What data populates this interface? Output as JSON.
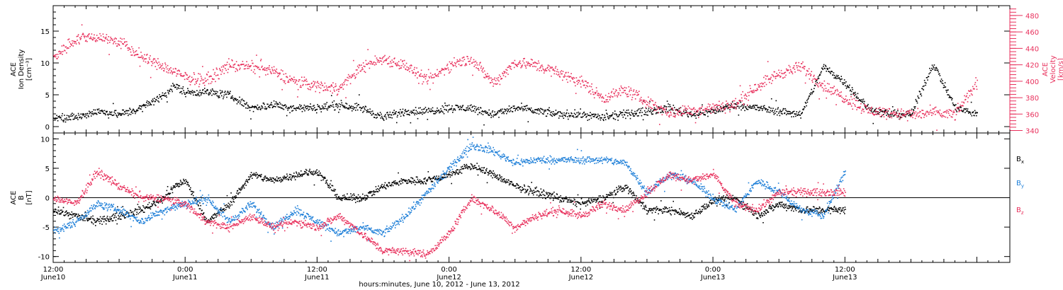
{
  "colors": {
    "black": "#000000",
    "velocity": "#e8305c",
    "by": "#1e7fd8",
    "bz": "#e8305c"
  },
  "chart_data": [
    {
      "type": "scatter",
      "ylabel_lines": [
        "ACE",
        "Ion Density",
        "[cm⁻³]"
      ],
      "ylim": [
        -1,
        19
      ],
      "yticks": [
        0,
        5,
        10,
        15
      ],
      "y2label_lines": [
        "ACE",
        "Velocity",
        "[km/s]"
      ],
      "y2lim": [
        337,
        492
      ],
      "y2ticks": [
        340,
        360,
        380,
        400,
        420,
        440,
        460,
        480
      ],
      "xlim": [
        0,
        87
      ],
      "series": [
        {
          "axis": "left",
          "color": "#000000",
          "x": [
            0,
            2,
            4,
            6,
            8,
            10,
            11,
            12,
            14,
            16,
            18,
            20,
            22,
            24,
            26,
            28,
            30,
            32,
            34,
            36,
            38,
            40,
            42,
            44,
            46,
            48,
            50,
            52,
            54,
            56,
            58,
            60,
            62,
            64,
            66,
            68,
            70,
            72,
            74,
            76,
            78,
            80,
            82,
            84
          ],
          "y": [
            1.5,
            1.5,
            2.5,
            2.0,
            3.0,
            5.0,
            6.5,
            5.5,
            5.5,
            5.0,
            3.0,
            3.5,
            3.0,
            3.0,
            3.5,
            3.0,
            1.5,
            2.5,
            2.5,
            3.0,
            3.0,
            2.0,
            3.0,
            2.5,
            2.0,
            2.0,
            1.5,
            2.0,
            2.5,
            3.0,
            2.0,
            2.5,
            3.5,
            3.0,
            2.5,
            2.0,
            9.5,
            7.0,
            3.0,
            2.0,
            2.0,
            10.0,
            3.0,
            2.0
          ]
        },
        {
          "axis": "right",
          "color": "#e8305c",
          "x": [
            0,
            2,
            4,
            6,
            8,
            10,
            12,
            14,
            16,
            18,
            20,
            22,
            24,
            26,
            28,
            30,
            32,
            34,
            36,
            38,
            40,
            42,
            44,
            46,
            48,
            50,
            52,
            54,
            56,
            58,
            60,
            62,
            64,
            66,
            68,
            70,
            72,
            74,
            76,
            78,
            80,
            82,
            84
          ],
          "y": [
            430,
            452,
            455,
            448,
            430,
            418,
            405,
            402,
            420,
            418,
            412,
            400,
            395,
            392,
            418,
            428,
            420,
            400,
            420,
            428,
            398,
            424,
            420,
            410,
            400,
            380,
            390,
            375,
            362,
            365,
            368,
            372,
            395,
            410,
            418,
            395,
            380,
            365,
            362,
            360,
            362,
            360,
            400
          ]
        }
      ]
    },
    {
      "type": "scatter",
      "ylabel_lines": [
        "ACE",
        "B",
        "[nT]"
      ],
      "ylim": [
        -11,
        11
      ],
      "yticks": [
        -10,
        -5,
        0,
        5,
        10
      ],
      "xlim": [
        0,
        87
      ],
      "xtick_labels": [
        {
          "x": 0,
          "time": "12:00",
          "date": "June10"
        },
        {
          "x": 12,
          "time": "0:00",
          "date": "June11"
        },
        {
          "x": 24,
          "time": "12:00",
          "date": "June11"
        },
        {
          "x": 36,
          "time": "0:00",
          "date": "June12"
        },
        {
          "x": 48,
          "time": "12:00",
          "date": "June12"
        },
        {
          "x": 60,
          "time": "0:00",
          "date": "June13"
        },
        {
          "x": 72,
          "time": "12:00",
          "date": "June13"
        }
      ],
      "xlabel": "hours:minutes, June 10, 2012 - June 13, 2012",
      "zero_line": true,
      "legend": [
        {
          "label": "B",
          "sub": "x",
          "color": "#000000"
        },
        {
          "label": "B",
          "sub": "y",
          "color": "#1e7fd8"
        },
        {
          "label": "B",
          "sub": "z",
          "color": "#e8305c"
        }
      ],
      "series": [
        {
          "name": "Bx",
          "color": "#000000",
          "x": [
            0,
            2,
            4,
            6,
            8,
            10,
            11,
            12,
            14,
            16,
            18,
            20,
            22,
            24,
            26,
            28,
            30,
            32,
            34,
            36,
            38,
            40,
            42,
            44,
            46,
            48,
            50,
            52,
            54,
            56,
            58,
            60,
            62,
            64,
            66,
            68,
            70,
            72
          ],
          "y": [
            -2,
            -3,
            -4,
            -3,
            -2,
            0,
            2,
            3,
            -4,
            -1,
            4,
            3,
            4,
            4.5,
            0,
            0,
            2,
            3,
            3,
            4,
            5.5,
            4,
            2,
            1,
            0,
            -1,
            0,
            2,
            -2,
            -2,
            -3,
            -0.5,
            0,
            -3,
            -1,
            -2,
            -2,
            -2
          ]
        },
        {
          "name": "By",
          "color": "#1e7fd8",
          "x": [
            0,
            1,
            2,
            4,
            6,
            8,
            10,
            12,
            14,
            16,
            18,
            20,
            22,
            24,
            26,
            28,
            30,
            32,
            34,
            36,
            38,
            40,
            42,
            44,
            46,
            48,
            50,
            52,
            54,
            56,
            58,
            60,
            62,
            64,
            66,
            68,
            70,
            72
          ],
          "y": [
            -5.5,
            -5,
            -4,
            -1,
            -2,
            -4,
            -2,
            -1,
            0,
            -4,
            -1,
            -5,
            -2,
            -4,
            -6,
            -5,
            -6,
            -3,
            1,
            5,
            9,
            8,
            6,
            6.5,
            6.5,
            6.5,
            6.5,
            6,
            1,
            4,
            3,
            0,
            -2,
            3,
            1,
            -2,
            -3,
            4.5
          ]
        },
        {
          "name": "Bz",
          "color": "#e8305c",
          "x": [
            0,
            2,
            4,
            6,
            8,
            10,
            12,
            14,
            16,
            18,
            20,
            22,
            24,
            26,
            28,
            30,
            32,
            34,
            36,
            38,
            40,
            42,
            44,
            46,
            48,
            50,
            52,
            54,
            56,
            58,
            60,
            62,
            64,
            66,
            68,
            70,
            72
          ],
          "y": [
            0,
            -1,
            4.5,
            2,
            0,
            0,
            -1,
            -4,
            -5,
            -3,
            -5,
            -4,
            -5,
            -3,
            -6,
            -9,
            -9,
            -9.5,
            -6,
            0,
            -2,
            -5,
            -3,
            -2,
            -3,
            -1,
            -2,
            1,
            4,
            3,
            4,
            -1,
            -2,
            1,
            1,
            1,
            1
          ]
        }
      ]
    }
  ]
}
